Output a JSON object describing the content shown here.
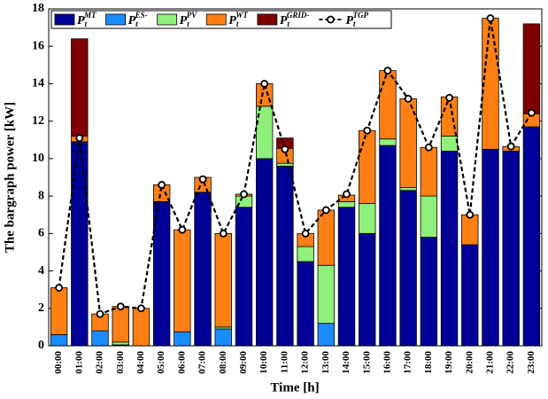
{
  "chart_data": {
    "type": "stacked_bar_line",
    "x_label": "Time [h]",
    "y_label": "The bargraph power [kW]",
    "categories": [
      "00:00",
      "01:00",
      "02:00",
      "03:00",
      "04:00",
      "05:00",
      "06:00",
      "07:00",
      "08:00",
      "09:00",
      "10:00",
      "11:00",
      "12:00",
      "13:00",
      "14:00",
      "15:00",
      "16:00",
      "17:00",
      "18:00",
      "19:00",
      "20:00",
      "21:00",
      "22:00",
      "23:00"
    ],
    "series": [
      {
        "name": {
          "base": "P",
          "sub": "t",
          "sup": "MT"
        },
        "color": "#000096",
        "kind": "bar",
        "values": [
          0,
          10.9,
          0,
          0,
          0,
          7.7,
          0,
          8.2,
          0,
          7.4,
          10.0,
          9.6,
          4.5,
          0,
          7.4,
          6.0,
          10.7,
          8.3,
          5.8,
          10.4,
          5.4,
          10.5,
          10.4,
          11.7
        ]
      },
      {
        "name": {
          "base": "P",
          "sub": "t",
          "sup": "ES-"
        },
        "color": "#1a8cff",
        "kind": "bar",
        "values": [
          0.6,
          0,
          0.8,
          0.05,
          0,
          0,
          0.75,
          0,
          0.9,
          0,
          0,
          0,
          0,
          1.2,
          0,
          0,
          0,
          0,
          0,
          0,
          0,
          0,
          0,
          0
        ]
      },
      {
        "name": {
          "base": "P",
          "sub": "t",
          "sup": "PV"
        },
        "color": "#8ef07a",
        "kind": "bar",
        "values": [
          0,
          0,
          0,
          0.15,
          0,
          0,
          0,
          0,
          0.1,
          0.6,
          2.8,
          0.15,
          0.8,
          3.1,
          0.3,
          1.6,
          0.35,
          0.15,
          2.2,
          0.8,
          0,
          0,
          0,
          0
        ]
      },
      {
        "name": {
          "base": "P",
          "sub": "t",
          "sup": "WT"
        },
        "color": "#ff7f14",
        "kind": "bar",
        "values": [
          2.5,
          0.3,
          0.9,
          1.9,
          2.0,
          0.9,
          5.45,
          0.8,
          5.0,
          0.1,
          1.2,
          0.8,
          0.7,
          2.95,
          0.35,
          3.9,
          3.65,
          4.75,
          2.6,
          2.1,
          1.6,
          7.0,
          0.25,
          0.7
        ]
      },
      {
        "name": {
          "base": "P",
          "sub": "t",
          "sup": "GRID-"
        },
        "color": "#800000",
        "kind": "bar",
        "values": [
          0,
          5.2,
          0,
          0,
          0,
          0,
          0,
          0,
          0,
          0,
          0,
          0.55,
          0,
          0,
          0,
          0,
          0,
          0,
          0,
          0,
          0,
          0,
          0,
          4.8
        ]
      },
      {
        "name": {
          "base": "P",
          "sub": "t",
          "sup": "TGP"
        },
        "color": "#000000",
        "kind": "line",
        "values": [
          3.1,
          11.1,
          1.7,
          2.1,
          2.0,
          8.6,
          6.2,
          8.9,
          6.0,
          8.1,
          14.0,
          10.5,
          6.0,
          7.25,
          8.1,
          11.5,
          14.7,
          13.2,
          10.6,
          13.25,
          7.0,
          17.5,
          10.65,
          12.45
        ]
      }
    ],
    "ylim": [
      0,
      18
    ],
    "yticks": [
      0,
      2,
      4,
      6,
      8,
      10,
      12,
      14,
      16,
      18
    ],
    "grid": false,
    "legend": "top-left"
  }
}
